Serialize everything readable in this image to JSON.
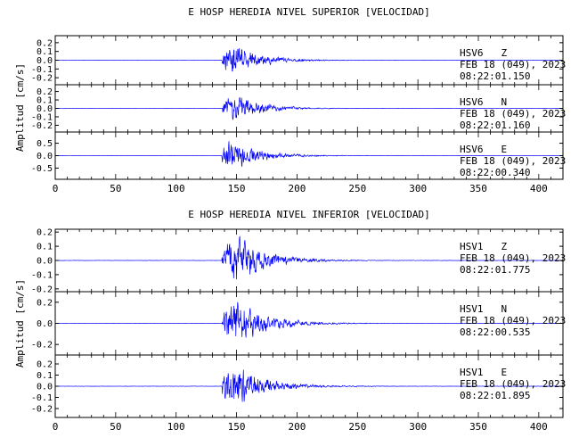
{
  "colors": {
    "trace": "#0000ff",
    "axis": "#000000",
    "background": "#ffffff"
  },
  "chart_data": [
    {
      "type": "line",
      "title": "E HOSP HEREDIA NIVEL SUPERIOR [VELOCIDAD]",
      "ylabel": "Amplitud [cm/s]",
      "xlim": [
        0,
        420
      ],
      "xticks": [
        "0",
        "50",
        "100",
        "150",
        "200",
        "250",
        "300",
        "350",
        "400"
      ],
      "grid": false,
      "series": [
        {
          "name": "HSV6 Z",
          "station": "HSV6",
          "component": "Z",
          "date": "FEB 18 (049), 2023",
          "time": "08:22:01.150",
          "ylim": [
            -0.28,
            0.28
          ],
          "yticks": [
            "0.2",
            "0.1",
            "0.0",
            "-0.1",
            "-0.2"
          ],
          "yvals": [
            0.2,
            0.1,
            0.0,
            -0.1,
            -0.2
          ],
          "onset_s": 138,
          "peak_s": 147,
          "peak_amplitude": 0.26,
          "coda_end_s": 235
        },
        {
          "name": "HSV6 N",
          "station": "HSV6",
          "component": "N",
          "date": "FEB 18 (049), 2023",
          "time": "08:22:01.160",
          "ylim": [
            -0.28,
            0.28
          ],
          "yticks": [
            "0.2",
            "0.1",
            "0.0",
            "-0.1",
            "-0.2"
          ],
          "yvals": [
            0.2,
            0.1,
            0.0,
            -0.1,
            -0.2
          ],
          "onset_s": 138,
          "peak_s": 147,
          "peak_amplitude": 0.23,
          "coda_end_s": 235
        },
        {
          "name": "HSV6 E",
          "station": "HSV6",
          "component": "E",
          "date": "FEB 18 (049), 2023",
          "time": "08:22:00.340",
          "ylim": [
            -0.95,
            0.95
          ],
          "yticks": [
            "0.5",
            "0.0",
            "-0.5"
          ],
          "yvals": [
            0.5,
            0.0,
            -0.5
          ],
          "onset_s": 138,
          "peak_s": 145,
          "peak_amplitude": 0.85,
          "coda_end_s": 240
        }
      ]
    },
    {
      "type": "line",
      "title": "E HOSP HEREDIA NIVEL INFERIOR [VELOCIDAD]",
      "ylabel": "Amplitud [cm/s]",
      "xlim": [
        0,
        420
      ],
      "xticks": [
        "0",
        "50",
        "100",
        "150",
        "200",
        "250",
        "300",
        "350",
        "400"
      ],
      "grid": false,
      "series": [
        {
          "name": "HSV1 Z",
          "station": "HSV1",
          "component": "Z",
          "date": "FEB 18 (049), 2023",
          "time": "08:22:01.775",
          "ylim": [
            -0.22,
            0.22
          ],
          "yticks": [
            "0.2",
            "0.1",
            "0.0",
            "-0.1",
            "-0.2"
          ],
          "yvals": [
            0.2,
            0.1,
            0.0,
            -0.1,
            -0.2
          ],
          "onset_s": 138,
          "peak_s": 147,
          "peak_amplitude": 0.22,
          "coda_end_s": 250
        },
        {
          "name": "HSV1 N",
          "station": "HSV1",
          "component": "N",
          "date": "FEB 18 (049), 2023",
          "time": "08:22:00.535",
          "ylim": [
            -0.3,
            0.3
          ],
          "yticks": [
            "0.2",
            "0.0",
            "-0.2"
          ],
          "yvals": [
            0.2,
            0.0,
            -0.2
          ],
          "onset_s": 138,
          "peak_s": 147,
          "peak_amplitude": 0.3,
          "coda_end_s": 250
        },
        {
          "name": "HSV1 E",
          "station": "HSV1",
          "component": "E",
          "date": "FEB 18 (049), 2023",
          "time": "08:22:01.895",
          "ylim": [
            -0.28,
            0.28
          ],
          "yticks": [
            "0.2",
            "0.1",
            "0.0",
            "-0.1",
            "-0.2"
          ],
          "yvals": [
            0.2,
            0.1,
            0.0,
            -0.1,
            -0.2
          ],
          "onset_s": 138,
          "peak_s": 145,
          "peak_amplitude": 0.28,
          "coda_end_s": 250
        }
      ]
    }
  ]
}
